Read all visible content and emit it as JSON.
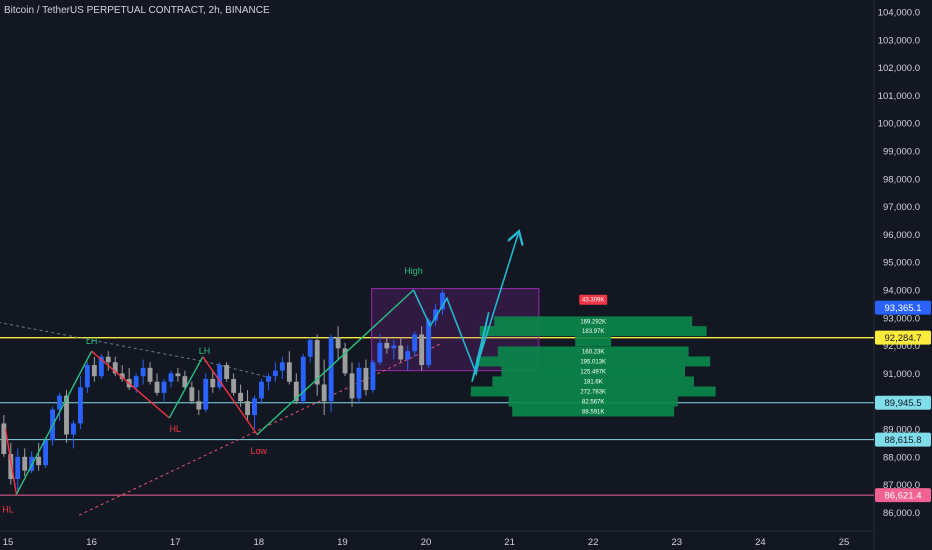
{
  "header": {
    "title": "Bitcoin / TetherUS PERPETUAL CONTRACT, 2h, BINANCE"
  },
  "colors": {
    "background": "#131722",
    "bull": "#2962ff",
    "bear": "#9e9e9e",
    "up_leg": "#26c281",
    "down_leg": "#f23645",
    "projection": "#22b8cf",
    "yellow_line": "#ffeb3b",
    "cyan_line": "#80deea",
    "red_line": "#f06292",
    "box": "#9c27b0",
    "volume": "#0a8a4a"
  },
  "chart_data": {
    "type": "candlestick",
    "ylim": [
      85700,
      104300
    ],
    "y_ticks": [
      "104,000.0",
      "103,000.0",
      "102,000.0",
      "101,000.0",
      "100,000.0",
      "99,000.0",
      "98,000.0",
      "97,000.0",
      "96,000.0",
      "95,000.0",
      "94,000.0",
      "93,000.0",
      "92,000.0",
      "91,000.0",
      "90,000.0",
      "89,000.0",
      "88,000.0",
      "87,000.0",
      "86,000.0"
    ],
    "y_tick_values": [
      104000,
      103000,
      102000,
      101000,
      100000,
      99000,
      98000,
      97000,
      96000,
      95000,
      94000,
      93000,
      92000,
      91000,
      90000,
      89000,
      88000,
      87000,
      86000
    ],
    "x_ticks": [
      {
        "label": "15",
        "day": 15
      },
      {
        "label": "16",
        "day": 16
      },
      {
        "label": "17",
        "day": 17
      },
      {
        "label": "18",
        "day": 18
      },
      {
        "label": "19",
        "day": 19
      },
      {
        "label": "20",
        "day": 20
      },
      {
        "label": "21",
        "day": 21
      },
      {
        "label": "22",
        "day": 22
      },
      {
        "label": "23",
        "day": 23
      },
      {
        "label": "24",
        "day": 24
      },
      {
        "label": "25",
        "day": 25
      }
    ],
    "candles": [
      [
        89200,
        89500,
        88000,
        88100
      ],
      [
        88100,
        88500,
        87000,
        87200
      ],
      [
        87200,
        88300,
        86800,
        88000
      ],
      [
        88000,
        88300,
        87300,
        87500
      ],
      [
        87500,
        88200,
        87400,
        88000
      ],
      [
        88000,
        88500,
        87500,
        87700
      ],
      [
        87700,
        88700,
        87600,
        88600
      ],
      [
        88600,
        89800,
        88400,
        89700
      ],
      [
        89700,
        90300,
        89300,
        90200
      ],
      [
        90200,
        90400,
        88500,
        88800
      ],
      [
        88800,
        89300,
        88300,
        89200
      ],
      [
        89200,
        90900,
        89000,
        90500
      ],
      [
        90500,
        91400,
        90300,
        91300
      ],
      [
        91300,
        91600,
        90700,
        90900
      ],
      [
        90900,
        91700,
        90800,
        91600
      ],
      [
        91600,
        91800,
        91100,
        91400
      ],
      [
        91400,
        91600,
        90900,
        91000
      ],
      [
        91000,
        91300,
        90700,
        90800
      ],
      [
        90800,
        91200,
        90400,
        90500
      ],
      [
        90500,
        91000,
        90300,
        90900
      ],
      [
        90900,
        91500,
        90600,
        91200
      ],
      [
        91200,
        91400,
        90600,
        90700
      ],
      [
        90700,
        91000,
        90200,
        90300
      ],
      [
        90300,
        90800,
        90000,
        90700
      ],
      [
        90700,
        91100,
        90500,
        91000
      ],
      [
        91000,
        91200,
        90700,
        90900
      ],
      [
        90900,
        91100,
        90400,
        90500
      ],
      [
        90500,
        90700,
        89900,
        90000
      ],
      [
        90000,
        90400,
        89500,
        89700
      ],
      [
        89700,
        91000,
        89600,
        90800
      ],
      [
        90800,
        91100,
        90300,
        90500
      ],
      [
        90500,
        91400,
        90400,
        91300
      ],
      [
        91300,
        91400,
        90700,
        90800
      ],
      [
        90800,
        91000,
        90200,
        90300
      ],
      [
        90300,
        90600,
        89800,
        90000
      ],
      [
        90000,
        90400,
        89300,
        89500
      ],
      [
        89500,
        90200,
        89000,
        90100
      ],
      [
        90100,
        90800,
        89900,
        90700
      ],
      [
        90700,
        91000,
        90400,
        90900
      ],
      [
        90900,
        91400,
        90700,
        91100
      ],
      [
        91100,
        91600,
        90800,
        91400
      ],
      [
        91400,
        91800,
        90600,
        90700
      ],
      [
        90700,
        91000,
        89900,
        90000
      ],
      [
        90000,
        91700,
        89900,
        91600
      ],
      [
        91600,
        92300,
        91400,
        92200
      ],
      [
        92200,
        92400,
        90200,
        90600
      ],
      [
        90600,
        91500,
        89500,
        90000
      ],
      [
        90000,
        92400,
        89600,
        92300
      ],
      [
        92300,
        92700,
        91500,
        91900
      ],
      [
        91900,
        92100,
        90900,
        91000
      ],
      [
        91000,
        91400,
        89800,
        90100
      ],
      [
        90100,
        91400,
        89900,
        91200
      ],
      [
        91200,
        91500,
        90200,
        90400
      ],
      [
        90400,
        91500,
        90300,
        91400
      ],
      [
        91400,
        92400,
        91300,
        92100
      ],
      [
        92100,
        92300,
        91700,
        91900
      ],
      [
        91900,
        92200,
        91500,
        92000
      ],
      [
        92000,
        92300,
        91400,
        91500
      ],
      [
        91500,
        92000,
        91100,
        91800
      ],
      [
        91800,
        92500,
        91600,
        92400
      ],
      [
        92400,
        92700,
        91100,
        91300
      ],
      [
        91300,
        93000,
        91200,
        92900
      ],
      [
        92900,
        93500,
        92700,
        93300
      ],
      [
        93300,
        94000,
        93100,
        93900
      ]
    ],
    "candle_start_day": 14.95,
    "candle_step_days": 0.0833,
    "structure_legs": [
      {
        "color": "down",
        "points": [
          [
            14.97,
            89000
          ],
          [
            15.1,
            86650
          ]
        ]
      },
      {
        "color": "up",
        "points": [
          [
            15.1,
            86650
          ],
          [
            16.0,
            91800
          ]
        ]
      },
      {
        "color": "down",
        "points": [
          [
            16.0,
            91800
          ],
          [
            16.93,
            89400
          ]
        ]
      },
      {
        "color": "up",
        "points": [
          [
            16.93,
            89400
          ],
          [
            17.33,
            91600
          ]
        ]
      },
      {
        "color": "down",
        "points": [
          [
            17.33,
            91600
          ],
          [
            17.98,
            88800
          ]
        ]
      },
      {
        "color": "up",
        "points": [
          [
            17.98,
            88800
          ],
          [
            19.85,
            94000
          ]
        ]
      }
    ],
    "projection_path": [
      [
        19.85,
        94000
      ],
      [
        20.05,
        92700
      ],
      [
        20.25,
        93700
      ],
      [
        20.6,
        91000
      ],
      [
        20.75,
        93200
      ],
      [
        20.55,
        90700
      ],
      [
        21.1,
        96000
      ]
    ],
    "projection_end": [
      21.1,
      96000
    ],
    "dotted_down": [
      [
        14.6,
        93000
      ],
      [
        17.4,
        91400
      ],
      [
        18.2,
        90800
      ]
    ],
    "dotted_up": [
      [
        15.85,
        85900
      ],
      [
        20.2,
        92100
      ]
    ],
    "box": {
      "x0_day": 19.35,
      "x1_day": 21.35,
      "y0": 91100,
      "y1": 94050
    },
    "swing_labels": [
      {
        "text": "LH",
        "day": 16.0,
        "price": 92050,
        "color": "up"
      },
      {
        "text": "LH",
        "day": 17.35,
        "price": 91700,
        "color": "up"
      },
      {
        "text": "HL",
        "day": 17.0,
        "price": 88900,
        "color": "down"
      },
      {
        "text": "Low",
        "day": 18.0,
        "price": 88100,
        "color": "down"
      },
      {
        "text": "HL",
        "day": 15.0,
        "price": 86000,
        "color": "down"
      },
      {
        "text": "High",
        "day": 19.85,
        "price": 94580,
        "color": "up"
      }
    ],
    "horizontal_lines": [
      {
        "price": 92284.7,
        "label": "92,284.7",
        "color": "yellow",
        "from_day": 14.8,
        "to_day": 25.5
      },
      {
        "price": 89945.5,
        "label": "89,945.5",
        "color": "cyan",
        "from_day": 14.8,
        "to_day": 25.5
      },
      {
        "price": 88615.8,
        "label": "88,615.8",
        "color": "cyan",
        "from_day": 14.8,
        "to_day": 25.5
      },
      {
        "price": 86621.4,
        "label": "86,621.4",
        "color": "red",
        "from_day": 14.8,
        "to_day": 25.5
      }
    ],
    "last_price": {
      "price": 93365.1,
      "label": "93,365.1"
    },
    "volume_profile": {
      "center_day": 22.0,
      "peak_label": "43.309K",
      "peak_price": 93650,
      "bins": [
        {
          "price": 92870,
          "width": 110,
          "label": "169.292K"
        },
        {
          "price": 92520,
          "width": 126,
          "label": "183.97K"
        },
        {
          "price": 92160,
          "width": 20,
          "label": ""
        },
        {
          "price": 91790,
          "width": 106,
          "label": "160.23K"
        },
        {
          "price": 91430,
          "width": 130,
          "label": "195.013K"
        },
        {
          "price": 91070,
          "width": 102,
          "label": "125.497K"
        },
        {
          "price": 90710,
          "width": 112,
          "label": "181.6K"
        },
        {
          "price": 90350,
          "width": 136,
          "label": "272.783K"
        },
        {
          "price": 89990,
          "width": 94,
          "label": "82.567K"
        },
        {
          "price": 89630,
          "width": 90,
          "label": "88.591K"
        }
      ]
    }
  }
}
